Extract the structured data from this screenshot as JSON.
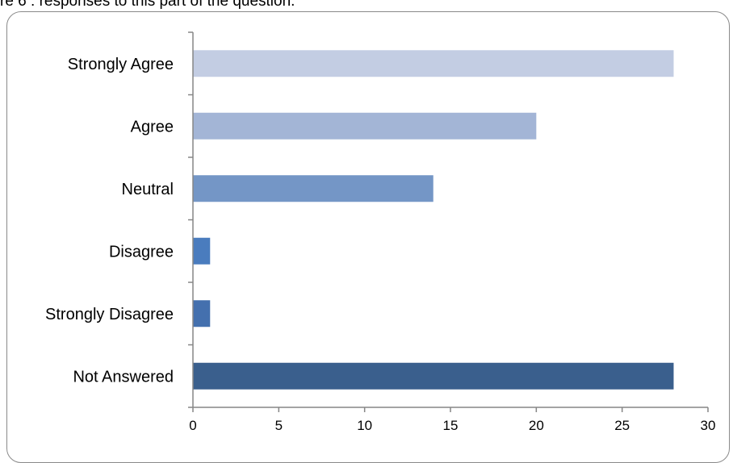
{
  "caption": "re 6 : responses to this part of the question.",
  "chart_data": {
    "type": "bar",
    "orientation": "horizontal",
    "categories": [
      "Strongly Agree",
      "Agree",
      "Neutral",
      "Disagree",
      "Strongly Disagree",
      "Not Answered"
    ],
    "values": [
      28,
      20,
      14,
      1,
      1,
      28
    ],
    "colors": [
      "#c3cde3",
      "#a3b5d6",
      "#7496c6",
      "#4a7cbe",
      "#4470ae",
      "#3a5f8d"
    ],
    "xlim": [
      0,
      30
    ],
    "xticks": [
      0,
      5,
      10,
      15,
      20,
      25,
      30
    ],
    "grid": false,
    "legend": "none"
  }
}
